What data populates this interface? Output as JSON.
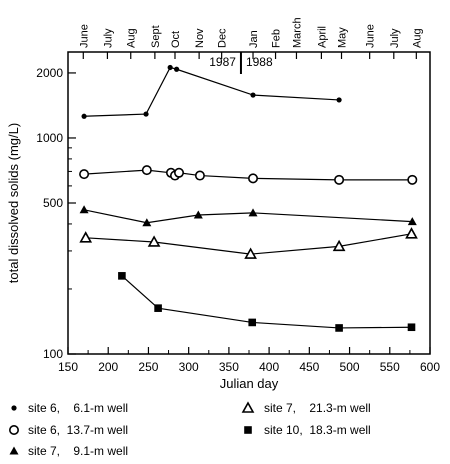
{
  "chart_data": {
    "type": "scatter",
    "xlabel": "Julian day",
    "ylabel": "total dissolved solids (mg/L)",
    "xlim": [
      150,
      600
    ],
    "ylim": [
      100,
      2500
    ],
    "y_scale": "log",
    "x_ticks": [
      150,
      200,
      250,
      300,
      350,
      400,
      450,
      500,
      550,
      600
    ],
    "y_ticks": [
      {
        "value": 100,
        "label": "100"
      },
      {
        "value": 500,
        "label": "500"
      },
      {
        "value": 1000,
        "label": "1000"
      },
      {
        "value": 2000,
        "label": "2000"
      }
    ],
    "top_axis": {
      "months": [
        {
          "label": "June",
          "day": 169
        },
        {
          "label": "July",
          "day": 199
        },
        {
          "label": "Aug",
          "day": 228
        },
        {
          "label": "Sept",
          "day": 258
        },
        {
          "label": "Oct",
          "day": 283
        },
        {
          "label": "Nov",
          "day": 313
        },
        {
          "label": "Dec",
          "day": 341
        },
        {
          "label": "Jan",
          "day": 380
        },
        {
          "label": "Feb",
          "day": 408
        },
        {
          "label": "March",
          "day": 434
        },
        {
          "label": "April",
          "day": 465
        },
        {
          "label": "May",
          "day": 490
        },
        {
          "label": "June",
          "day": 525
        },
        {
          "label": "July",
          "day": 555
        },
        {
          "label": "Aug",
          "day": 583
        }
      ],
      "year_left": "1987",
      "year_right": "1988",
      "year_boundary_day": 365
    },
    "legend": {
      "placement": "bottom"
    },
    "series": [
      {
        "name": "site 6,    6.1-m well",
        "marker": "dot",
        "x": [
          170,
          247,
          277,
          285,
          380,
          487
        ],
        "y": [
          1260,
          1290,
          2120,
          2080,
          1580,
          1500
        ]
      },
      {
        "name": "site 6,  13.7-m well",
        "marker": "open-circle",
        "x": [
          170,
          248,
          278,
          283,
          288,
          314,
          380,
          487,
          578
        ],
        "y": [
          680,
          710,
          690,
          670,
          690,
          670,
          650,
          640,
          640
        ]
      },
      {
        "name": "site 7,    9.1-m well",
        "marker": "filled-triangle",
        "x": [
          170,
          248,
          312,
          380,
          578
        ],
        "y": [
          465,
          405,
          440,
          450,
          410
        ]
      },
      {
        "name": "site 7,    21.3-m well",
        "marker": "open-triangle",
        "x": [
          172,
          257,
          377,
          487,
          577
        ],
        "y": [
          345,
          330,
          290,
          315,
          360
        ]
      },
      {
        "name": "site 10,  18.3-m well",
        "marker": "filled-square",
        "x": [
          217,
          262,
          379,
          487,
          577
        ],
        "y": [
          230,
          163,
          140,
          132,
          133
        ]
      }
    ]
  }
}
